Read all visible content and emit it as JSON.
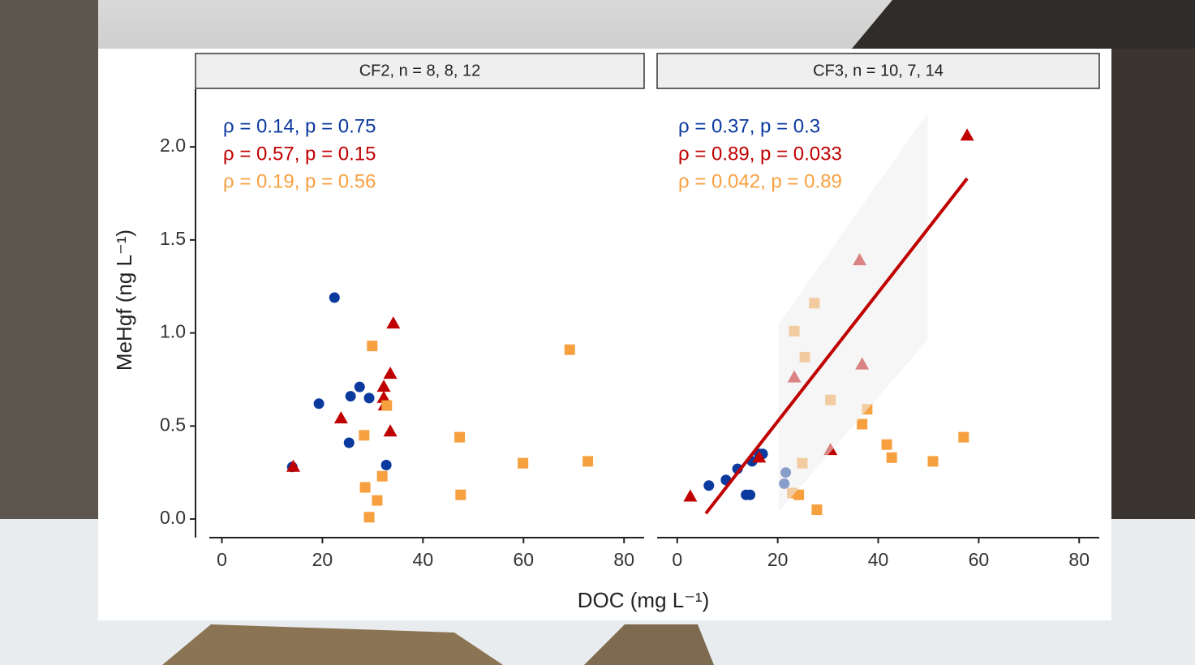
{
  "chart_data": {
    "type": "scatter",
    "xlabel": "DOC (mg L⁻¹)",
    "ylabel": "MeHgf (ng L⁻¹)",
    "ylim": [
      -0.1,
      2.31
    ],
    "yticks": [
      {
        "value": 0,
        "label": "0.0"
      },
      {
        "value": 0.5,
        "label": "0.5"
      },
      {
        "value": 1,
        "label": "1.0"
      },
      {
        "value": 1.5,
        "label": "1.5"
      },
      {
        "value": 2,
        "label": "2.0"
      }
    ],
    "facets": [
      {
        "title": "CF2, n = 8, 8, 12",
        "xlim": [
          -2.5,
          84
        ],
        "xticks": [
          0,
          20,
          40,
          60,
          80
        ],
        "annotations": [
          "ρ = 0.14, p = 0.75",
          "ρ = 0.57, p = 0.15",
          "ρ = 0.19, p = 0.56"
        ],
        "series": [
          {
            "color": "#0b3a9e",
            "marker": "circle",
            "x": [
              22.4,
              19.3,
              25.6,
              27.4,
              29.3,
              25.3,
              32.7,
              14.0
            ],
            "values": [
              1.19,
              0.62,
              0.66,
              0.71,
              0.65,
              0.41,
              0.29,
              0.28
            ]
          },
          {
            "color": "#c00000",
            "marker": "triangle",
            "x": [
              14.2,
              23.7,
              34.1,
              33.5,
              32.2,
              32.2,
              33.5,
              32.4
            ],
            "values": [
              0.28,
              0.54,
              1.05,
              0.78,
              0.71,
              0.65,
              0.47,
              0.61
            ]
          },
          {
            "color": "#f7a040",
            "marker": "square",
            "x": [
              29.9,
              32.8,
              28.3,
              28.5,
              31.9,
              30.9,
              29.3,
              47.3,
              47.5,
              59.9,
              69.2,
              72.8
            ],
            "values": [
              0.93,
              0.61,
              0.45,
              0.17,
              0.23,
              0.1,
              0.01,
              0.44,
              0.13,
              0.3,
              0.91,
              0.31
            ]
          }
        ]
      },
      {
        "title": "CF3, n = 10, 7, 14",
        "xlim": [
          -4,
          84
        ],
        "xticks": [
          0,
          20,
          40,
          60,
          80
        ],
        "annotations": [
          "ρ = 0.37, p = 0.3",
          "ρ = 0.89, p = 0.033",
          "ρ = 0.042, p = 0.89"
        ],
        "series": [
          {
            "color": "#0b3a9e",
            "marker": "circle",
            "x": [
              6.3,
              9.7,
              12.0,
              13.7,
              14.5,
              14.9,
              16.3,
              17.0,
              21.6,
              21.3
            ],
            "values": [
              0.18,
              0.21,
              0.27,
              0.13,
              0.13,
              0.31,
              0.35,
              0.35,
              0.25,
              0.19
            ]
          },
          {
            "color": "#c00000",
            "marker": "triangle",
            "x": [
              2.6,
              57.7,
              36.3,
              36.8,
              23.3,
              30.5,
              16.3
            ],
            "values": [
              0.12,
              2.06,
              1.39,
              0.83,
              0.76,
              0.37,
              0.33
            ]
          },
          {
            "color": "#f7a040",
            "marker": "square",
            "x": [
              27.3,
              23.3,
              25.4,
              30.5,
              37.8,
              36.8,
              41.7,
              42.7,
              50.9,
              57.0,
              24.9,
              22.9,
              24.2,
              27.8
            ],
            "values": [
              1.16,
              1.01,
              0.87,
              0.64,
              0.59,
              0.51,
              0.4,
              0.33,
              0.31,
              0.44,
              0.3,
              0.14,
              0.13,
              0.05
            ]
          }
        ],
        "fit": {
          "color": "#c00000",
          "x": [
            5.7,
            57.7
          ],
          "values": [
            0.03,
            1.83
          ]
        },
        "band": {
          "x": [
            20.2,
            49.8
          ],
          "upper": [
            1.05,
            2.18
          ],
          "lower": [
            0.04,
            0.96
          ]
        }
      }
    ]
  }
}
